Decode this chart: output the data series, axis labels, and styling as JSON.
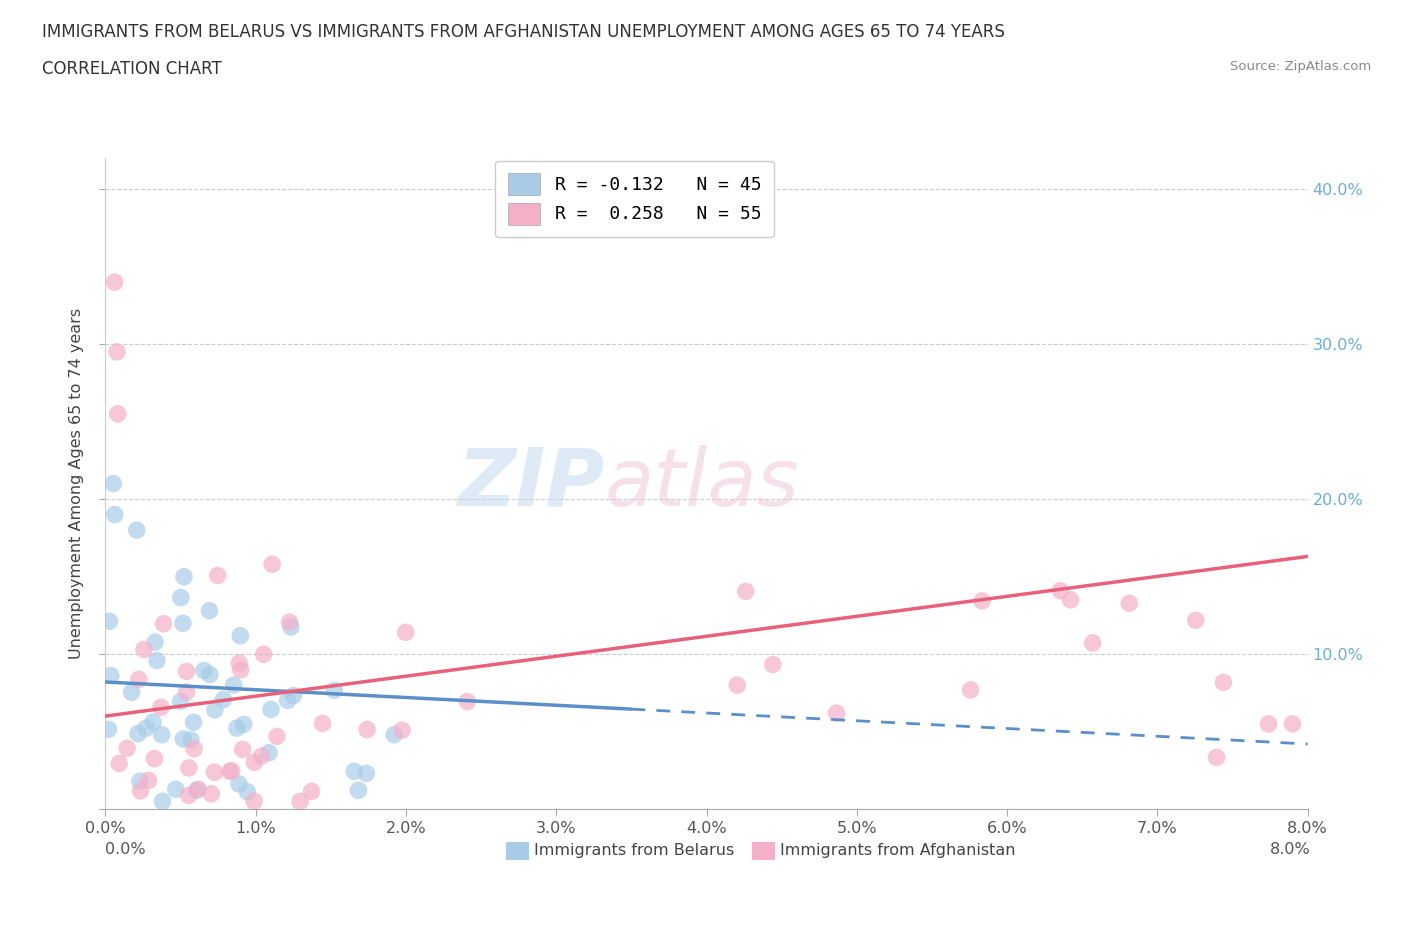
{
  "title_line1": "IMMIGRANTS FROM BELARUS VS IMMIGRANTS FROM AFGHANISTAN UNEMPLOYMENT AMONG AGES 65 TO 74 YEARS",
  "title_line2": "CORRELATION CHART",
  "source_text": "Source: ZipAtlas.com",
  "ylabel": "Unemployment Among Ages 65 to 74 years",
  "xlim": [
    0.0,
    0.08
  ],
  "ylim": [
    0.0,
    0.42
  ],
  "xticks": [
    0.0,
    0.01,
    0.02,
    0.03,
    0.04,
    0.05,
    0.06,
    0.07,
    0.08
  ],
  "yticks": [
    0.0,
    0.1,
    0.2,
    0.3,
    0.4
  ],
  "color_belarus": "#a8cce8",
  "color_afghanistan": "#f4b0c8",
  "color_belarus_line": "#5b8fc9",
  "color_afghanistan_line": "#e8607a",
  "color_right_axis": "#6baed6",
  "watermark_zip": "ZIP",
  "watermark_atlas": "atlas",
  "legend_entries": [
    {
      "label": "R = -0.132   N = 45",
      "color": "#a8cce8"
    },
    {
      "label": "R =  0.258   N = 55",
      "color": "#f4b0c8"
    }
  ],
  "bottom_legend": [
    {
      "label": "Immigrants from Belarus",
      "color": "#a8cce8"
    },
    {
      "label": "Immigrants from Afghanistan",
      "color": "#f4b0c8"
    }
  ],
  "belarus_line": {
    "x0": 0.0,
    "y0": 0.082,
    "x1": 0.08,
    "y1": 0.042,
    "solid_end": 0.035
  },
  "afghanistan_line": {
    "x0": 0.0,
    "y0": 0.06,
    "x1": 0.08,
    "y1": 0.163
  }
}
